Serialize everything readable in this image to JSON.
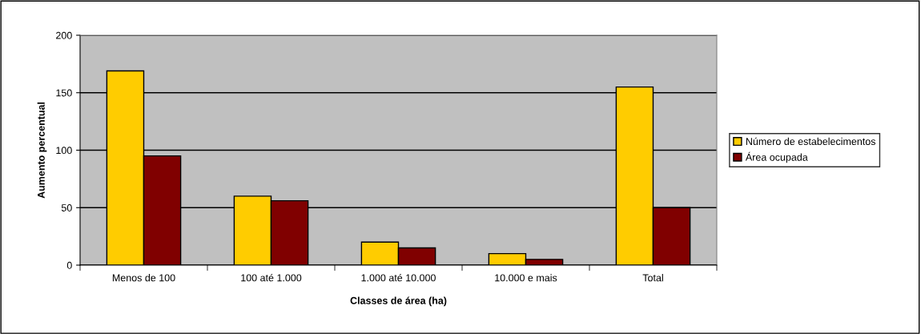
{
  "chart_data": {
    "type": "bar",
    "xlabel": "Classes de área (ha)",
    "ylabel": "Aumento percentual",
    "categories": [
      "Menos de 100",
      "100 até 1.000",
      "1.000 até 10.000",
      "10.000 e mais",
      "Total"
    ],
    "series": [
      {
        "name": "Número de estabelecimentos",
        "color": "#ffcc00",
        "values": [
          169,
          60,
          20,
          10,
          155
        ]
      },
      {
        "name": "Área ocupada",
        "color": "#800000",
        "values": [
          95,
          56,
          15,
          5,
          50
        ]
      }
    ],
    "ylim": [
      0,
      200
    ],
    "yticks": [
      0,
      50,
      100,
      150,
      200
    ],
    "grid": "y",
    "legend": "right"
  }
}
